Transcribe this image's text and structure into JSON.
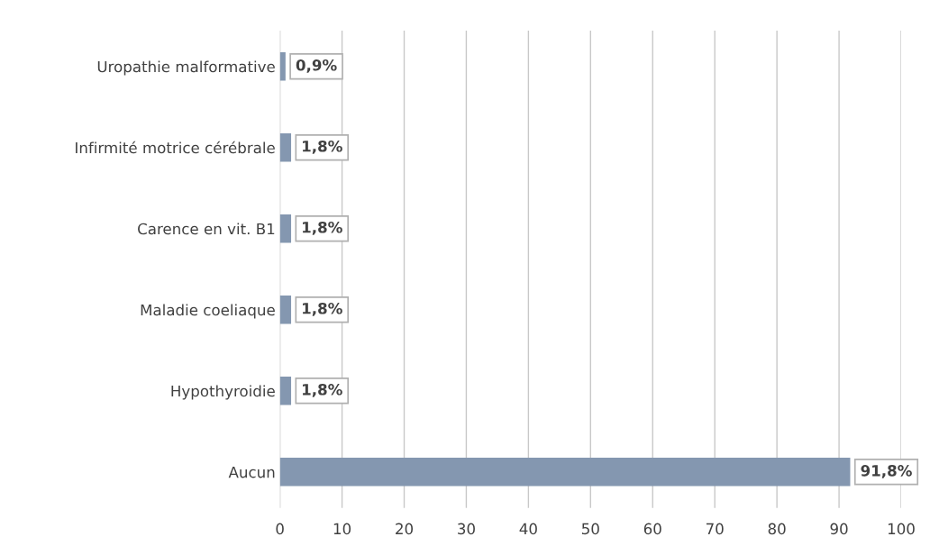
{
  "chart_data": {
    "type": "bar",
    "orientation": "horizontal",
    "categories": [
      "Uropathie malformative",
      "Infirmité motrice cérébrale",
      "Carence en vit. B1",
      "Maladie coeliaque",
      "Hypothyroidie",
      "Aucun"
    ],
    "values": [
      0.9,
      1.8,
      1.8,
      1.8,
      1.8,
      91.8
    ],
    "value_labels": [
      "0,9%",
      "1,8%",
      "1,8%",
      "1,8%",
      "1,8%",
      "91,8%"
    ],
    "color": "#8497b0",
    "xlim": [
      0,
      100
    ],
    "xticks": [
      0,
      10,
      20,
      30,
      40,
      50,
      60,
      70,
      80,
      90,
      100
    ],
    "grid": "x",
    "legend": false
  }
}
